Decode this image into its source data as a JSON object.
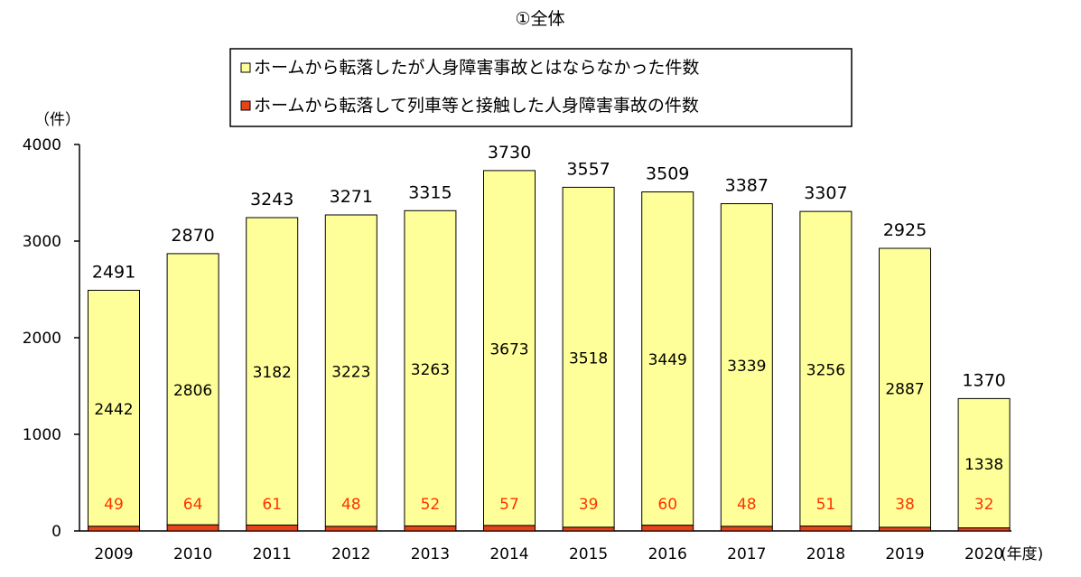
{
  "chart_data": {
    "type": "bar",
    "stacked": true,
    "title": "①全体",
    "ylabel": "（件）",
    "xlabel_suffix": "(年度)",
    "categories": [
      "2009",
      "2010",
      "2011",
      "2012",
      "2013",
      "2014",
      "2015",
      "2016",
      "2017",
      "2018",
      "2019",
      "2020"
    ],
    "ylim": [
      0,
      4000
    ],
    "yticks": [
      0,
      1000,
      2000,
      3000,
      4000
    ],
    "grid": false,
    "legend_position": "top",
    "series": [
      {
        "name": "ホームから転落して列車等と接触した人身障害事故の件数",
        "color": "#e8421a",
        "label_color": "#ff3300",
        "values": [
          49,
          64,
          61,
          48,
          52,
          57,
          39,
          60,
          48,
          51,
          38,
          32
        ]
      },
      {
        "name": "ホームから転落したが人身障害事故とはならなかった件数",
        "color": "#ffff99",
        "label_color": "#000000",
        "values": [
          2442,
          2806,
          3182,
          3223,
          3263,
          3673,
          3518,
          3449,
          3339,
          3256,
          2887,
          1338
        ]
      }
    ],
    "totals": [
      2491,
      2870,
      3243,
      3271,
      3315,
      3730,
      3557,
      3509,
      3387,
      3307,
      2925,
      1370
    ]
  }
}
